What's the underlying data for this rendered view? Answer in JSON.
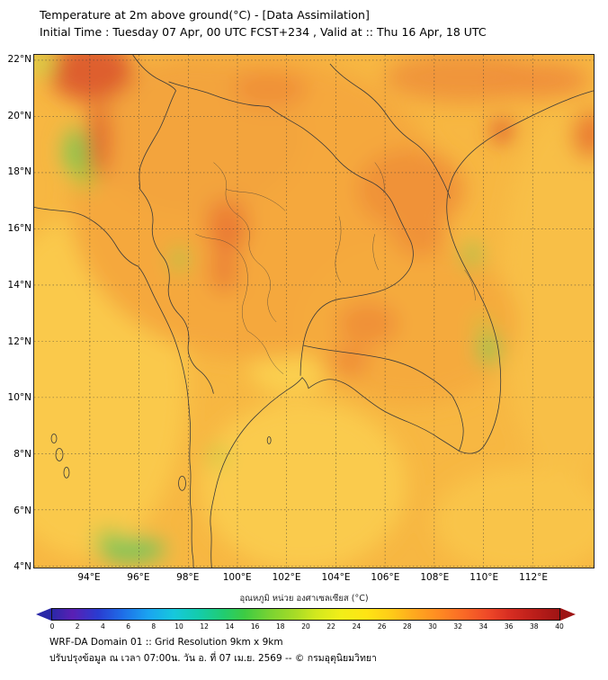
{
  "header": {
    "title": "Temperature at 2m above ground(°C) - [Data Assimilation]",
    "subtitle": "Initial Time : Tuesday 07 Apr, 00 UTC FCST+234 , Valid at :: Thu 16 Apr, 18 UTC"
  },
  "map": {
    "lat_ticks": [
      "22°N",
      "20°N",
      "18°N",
      "16°N",
      "14°N",
      "12°N",
      "10°N",
      "8°N",
      "6°N",
      "4°N"
    ],
    "lon_ticks": [
      "94°E",
      "96°E",
      "98°E",
      "100°E",
      "102°E",
      "104°E",
      "106°E",
      "108°E",
      "110°E",
      "112°E"
    ],
    "sea_color": "#f9c246",
    "land_color": "#f4a83e",
    "hot_color": "#de5f2e",
    "cool_color": "#7cc94f",
    "border_color": "#3a3a3a"
  },
  "colorbar": {
    "label": "อุณหภูมิ หน่วย องศาเซลเซียส (°C)",
    "min": 0,
    "max": 40,
    "ticks": [
      "0",
      "2",
      "4",
      "6",
      "8",
      "10",
      "12",
      "14",
      "16",
      "18",
      "20",
      "22",
      "24",
      "26",
      "28",
      "30",
      "32",
      "34",
      "36",
      "38",
      "40"
    ]
  },
  "footer": {
    "line1": "WRF-DA Domain 01 :: Grid Resolution 9km x 9km",
    "line2": "ปรับปรุงข้อมูล ณ เวลา 07:00น. วัน อ. ที่ 07 เม.ย. 2569 -- © กรมอุตุนิยมวิทยา"
  }
}
